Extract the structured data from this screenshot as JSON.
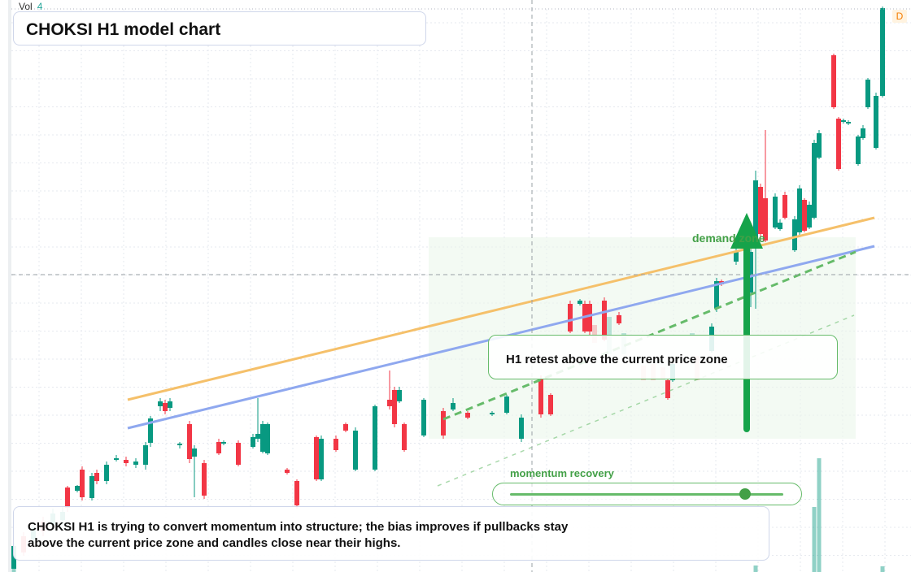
{
  "title": "CHOKSI H1 model chart",
  "volume_label": "Vol",
  "volume_value": "4",
  "timeframe_badge": "D",
  "annotations": {
    "retest": "H1 retest above the current price zone",
    "demand": "demand zone",
    "momentum": "momentum recovery",
    "momentum_level": 0.86,
    "note": "CHOKSI H1 is trying to convert momentum into structure; the bias improves if pullbacks stay above the current price zone and candles close near their highs."
  },
  "colors": {
    "up": "#089981",
    "down": "#f23645",
    "trend_orange": "#f5c06a",
    "trend_blue": "#8fa8ef",
    "trend_green": "#66bb6a",
    "arrow": "#16a34a"
  },
  "chart_data": {
    "type": "candlestick",
    "title": "CHOKSI H1 model chart",
    "series": [
      {
        "name": "Vol",
        "values": [
          4
        ]
      }
    ]
  }
}
